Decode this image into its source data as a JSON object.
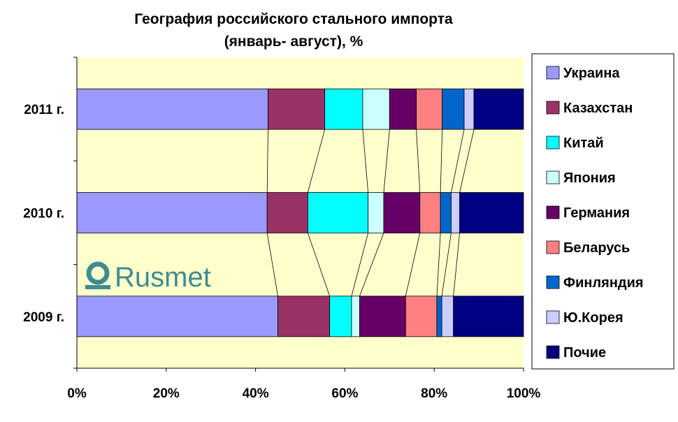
{
  "chart_data": {
    "type": "bar",
    "orientation": "horizontal",
    "stacked": "percent",
    "title": "География российского стального импорта",
    "subtitle": "(январь- август), %",
    "categories": [
      "2011 г.",
      "2010 г.",
      "2009 г."
    ],
    "xlim": [
      0,
      100
    ],
    "x_ticks": [
      "0%",
      "20%",
      "40%",
      "60%",
      "80%",
      "100%"
    ],
    "plot_background": "#ffffcc",
    "series_lines": true,
    "legend_position": "right",
    "series": [
      {
        "name": "Украина",
        "color": "#9999ff",
        "values": [
          42.8,
          42.6,
          45.0
        ]
      },
      {
        "name": "Казахстан",
        "color": "#993366",
        "values": [
          12.7,
          9.1,
          11.6
        ]
      },
      {
        "name": "Китай",
        "color": "#00ffff",
        "values": [
          8.5,
          13.5,
          4.9
        ]
      },
      {
        "name": "Япония",
        "color": "#ccffff",
        "values": [
          6.0,
          3.5,
          1.8
        ]
      },
      {
        "name": "Германия",
        "color": "#660066",
        "values": [
          6.0,
          8.1,
          10.3
        ]
      },
      {
        "name": "Беларусь",
        "color": "#ff8080",
        "values": [
          5.8,
          4.6,
          7.0
        ]
      },
      {
        "name": "Финляндия",
        "color": "#0066cc",
        "values": [
          4.9,
          2.4,
          1.1
        ]
      },
      {
        "name": "Ю.Корея",
        "color": "#ccccff",
        "values": [
          2.2,
          1.9,
          2.6
        ]
      },
      {
        "name": "Почие",
        "color": "#000080",
        "values": [
          11.1,
          14.3,
          15.7
        ]
      }
    ]
  },
  "watermark": {
    "text": "Rusmet",
    "color": "#3f8b93"
  }
}
